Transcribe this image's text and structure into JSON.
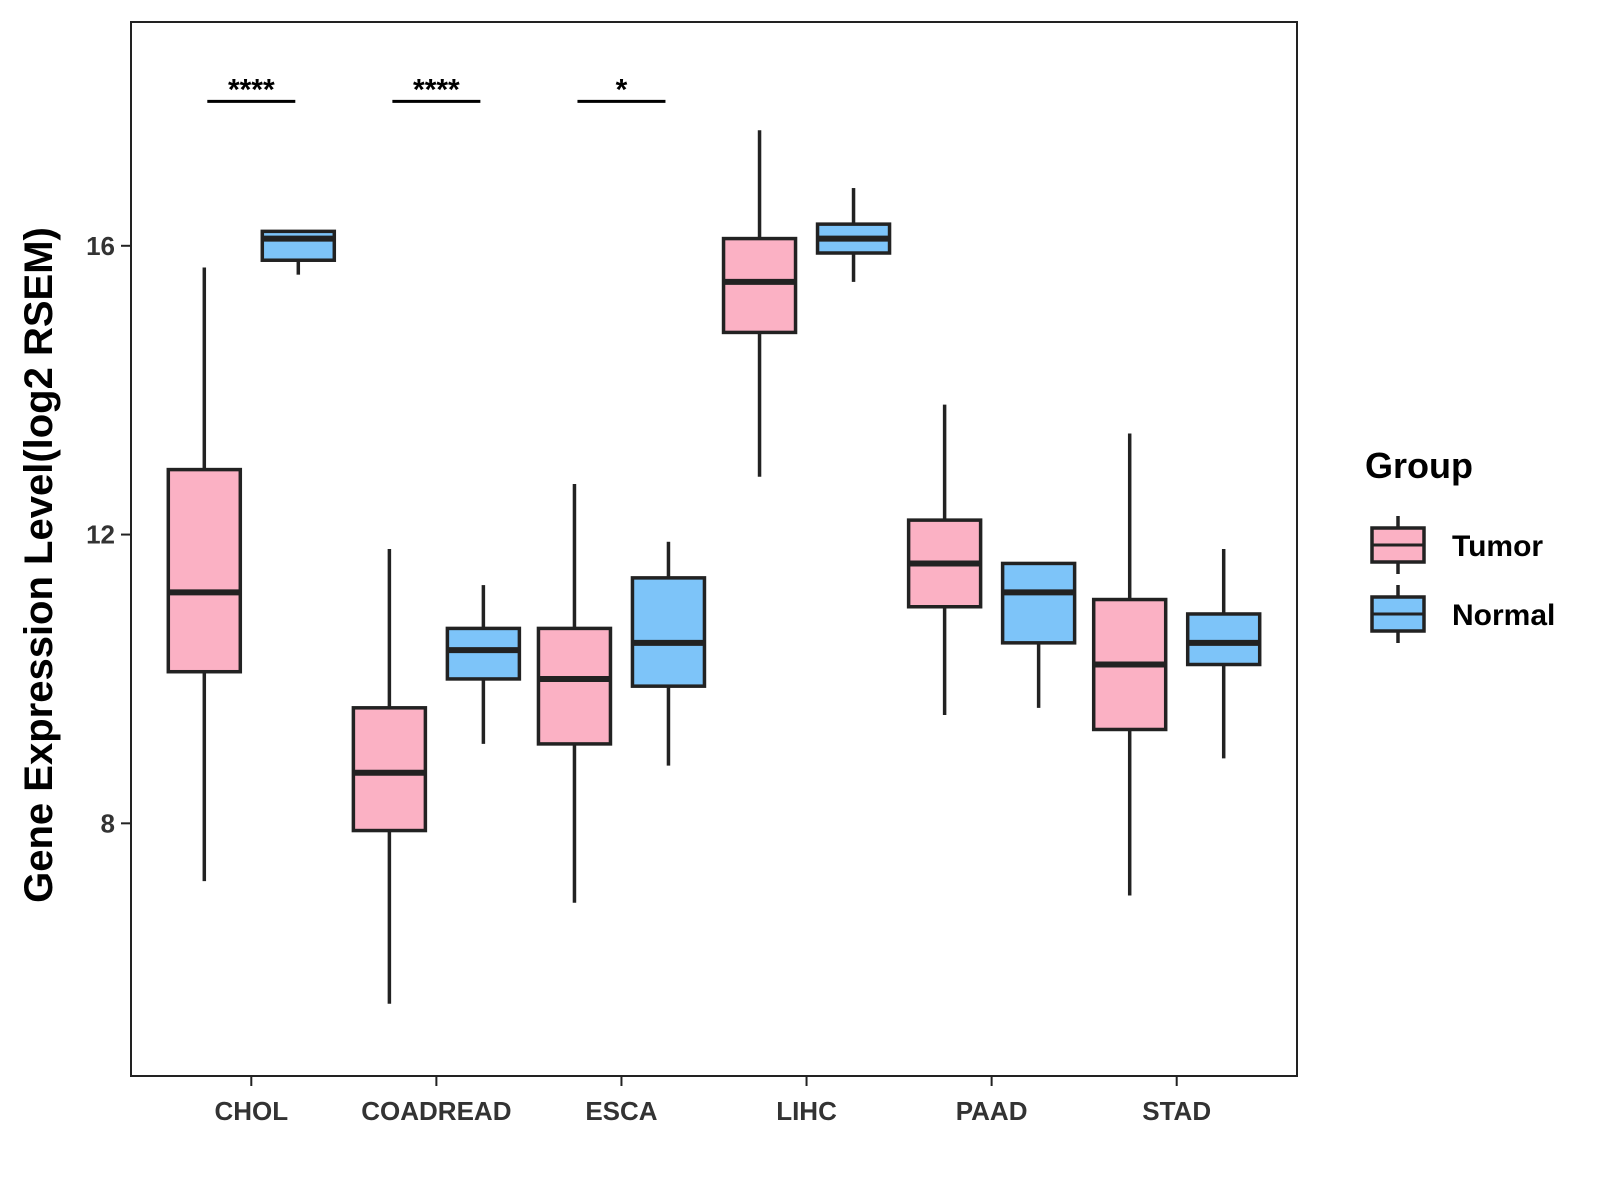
{
  "chart_data": {
    "type": "boxplot",
    "ylabel": "Gene Expression Level(log2 RSEM)",
    "xlabel": "",
    "ylim": [
      4.5,
      19.1
    ],
    "yticks": [
      8,
      12,
      16
    ],
    "categories": [
      "CHOL",
      "COADREAD",
      "ESCA",
      "LIHC",
      "PAAD",
      "STAD"
    ],
    "legend": {
      "title": "Group",
      "position": "right",
      "entries": [
        {
          "name": "Tumor",
          "color": "#FBB1C4"
        },
        {
          "name": "Normal",
          "color": "#7DC4F9"
        }
      ]
    },
    "series": [
      {
        "name": "Tumor",
        "color": "#FBB1C4",
        "boxes": [
          {
            "category": "CHOL",
            "whisker_low": 7.2,
            "q1": 10.1,
            "median": 11.2,
            "q3": 12.9,
            "whisker_high": 15.7
          },
          {
            "category": "COADREAD",
            "whisker_low": 5.5,
            "q1": 7.9,
            "median": 8.7,
            "q3": 9.6,
            "whisker_high": 11.8
          },
          {
            "category": "ESCA",
            "whisker_low": 6.9,
            "q1": 9.1,
            "median": 10.0,
            "q3": 10.7,
            "whisker_high": 12.7
          },
          {
            "category": "LIHC",
            "whisker_low": 12.8,
            "q1": 14.8,
            "median": 15.5,
            "q3": 16.1,
            "whisker_high": 17.6
          },
          {
            "category": "PAAD",
            "whisker_low": 9.5,
            "q1": 11.0,
            "median": 11.6,
            "q3": 12.2,
            "whisker_high": 13.8
          },
          {
            "category": "STAD",
            "whisker_low": 7.0,
            "q1": 9.3,
            "median": 10.2,
            "q3": 11.1,
            "whisker_high": 13.4
          }
        ]
      },
      {
        "name": "Normal",
        "color": "#7DC4F9",
        "boxes": [
          {
            "category": "CHOL",
            "whisker_low": 15.6,
            "q1": 15.8,
            "median": 16.1,
            "q3": 16.2,
            "whisker_high": 16.2
          },
          {
            "category": "COADREAD",
            "whisker_low": 9.1,
            "q1": 10.0,
            "median": 10.4,
            "q3": 10.7,
            "whisker_high": 11.3
          },
          {
            "category": "ESCA",
            "whisker_low": 8.8,
            "q1": 9.9,
            "median": 10.5,
            "q3": 11.4,
            "whisker_high": 11.9
          },
          {
            "category": "LIHC",
            "whisker_low": 15.5,
            "q1": 15.9,
            "median": 16.1,
            "q3": 16.3,
            "whisker_high": 16.8
          },
          {
            "category": "PAAD",
            "whisker_low": 9.6,
            "q1": 10.5,
            "median": 11.2,
            "q3": 11.6,
            "whisker_high": 11.6
          },
          {
            "category": "STAD",
            "whisker_low": 8.9,
            "q1": 10.2,
            "median": 10.5,
            "q3": 10.9,
            "whisker_high": 11.8
          }
        ]
      }
    ],
    "significance": [
      {
        "category": "CHOL",
        "label": "****",
        "y": 18.0
      },
      {
        "category": "COADREAD",
        "label": "****",
        "y": 18.0
      },
      {
        "category": "ESCA",
        "label": "*",
        "y": 18.0
      }
    ],
    "colors": {
      "tumor": "#FBB1C4",
      "normal": "#7DC4F9",
      "outline": "#222222",
      "axis": "#222222",
      "tick_text": "#333333"
    }
  }
}
